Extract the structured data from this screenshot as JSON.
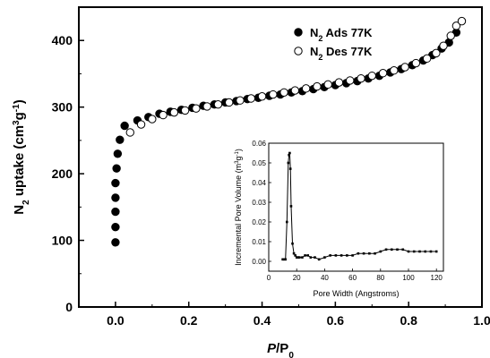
{
  "chart_data": [
    {
      "type": "scatter",
      "xlabel": "P/P0",
      "xlabel_parts": [
        "P",
        "/P",
        "0"
      ],
      "ylabel": "N2 uptake (cm3g-1)",
      "ylabel_parts": [
        "N",
        "2",
        " uptake (cm",
        "3",
        "g",
        "-1",
        ")"
      ],
      "xlim": [
        -0.1,
        1.0
      ],
      "ylim": [
        0,
        450
      ],
      "xticks": [
        0.0,
        0.2,
        0.4,
        0.6,
        0.8,
        1.0
      ],
      "xtick_labels": [
        "0.0",
        "0.2",
        "0.4",
        "0.6",
        "0.8",
        "1.0"
      ],
      "yticks": [
        0,
        100,
        200,
        300,
        400
      ],
      "ytick_labels": [
        "0",
        "100",
        "200",
        "300",
        "400"
      ],
      "grid": false,
      "legend_placement": "top-right",
      "series": [
        {
          "name": "N2 Ads 77K",
          "name_parts": [
            "N",
            "2",
            " Ads 77K"
          ],
          "marker": "filled-circle",
          "color": "#000000",
          "x": [
            0.0,
            0.0,
            0.0,
            0.0,
            0.0,
            0.003,
            0.006,
            0.012,
            0.025,
            0.06,
            0.09,
            0.12,
            0.15,
            0.18,
            0.21,
            0.24,
            0.27,
            0.3,
            0.33,
            0.36,
            0.39,
            0.42,
            0.45,
            0.48,
            0.51,
            0.54,
            0.57,
            0.6,
            0.63,
            0.66,
            0.69,
            0.72,
            0.75,
            0.78,
            0.81,
            0.84,
            0.865,
            0.89,
            0.91,
            0.93
          ],
          "y": [
            97,
            120,
            143,
            164,
            186,
            208,
            230,
            251,
            272,
            280,
            285,
            290,
            293,
            296,
            299,
            302,
            304,
            307,
            309,
            312,
            314,
            317,
            319,
            322,
            324,
            327,
            330,
            333,
            336,
            339,
            343,
            347,
            352,
            357,
            363,
            370,
            378,
            388,
            397,
            412
          ]
        },
        {
          "name": "N2 Des 77K",
          "name_parts": [
            "N",
            "2",
            " Des 77K"
          ],
          "marker": "open-circle",
          "color": "#000000",
          "x": [
            0.04,
            0.07,
            0.1,
            0.13,
            0.16,
            0.19,
            0.22,
            0.25,
            0.28,
            0.31,
            0.34,
            0.37,
            0.4,
            0.43,
            0.46,
            0.49,
            0.52,
            0.55,
            0.58,
            0.61,
            0.64,
            0.67,
            0.7,
            0.73,
            0.76,
            0.79,
            0.82,
            0.85,
            0.875,
            0.895,
            0.915,
            0.93,
            0.945
          ],
          "y": [
            262,
            274,
            282,
            288,
            292,
            295,
            298,
            301,
            304,
            307,
            310,
            313,
            316,
            319,
            322,
            325,
            328,
            331,
            334,
            337,
            340,
            343,
            347,
            351,
            355,
            360,
            366,
            373,
            381,
            392,
            407,
            422,
            429
          ]
        }
      ]
    },
    {
      "type": "line",
      "xlabel": "Pore Width (Angstroms)",
      "ylabel": "Incremental Pore Volume (m3g-1)",
      "ylabel_parts": [
        "Incremental Pore Volume (m",
        "3",
        "g",
        "-1",
        ")"
      ],
      "xlim": [
        0,
        125
      ],
      "ylim": [
        -0.005,
        0.06
      ],
      "xticks": [
        0,
        20,
        40,
        60,
        80,
        100,
        120
      ],
      "xtick_labels": [
        "0",
        "20",
        "40",
        "60",
        "80",
        "100",
        "120"
      ],
      "yticks": [
        0.0,
        0.01,
        0.02,
        0.03,
        0.04,
        0.05,
        0.06
      ],
      "ytick_labels": [
        "0.00",
        "0.01",
        "0.02",
        "0.03",
        "0.04",
        "0.05",
        "0.06"
      ],
      "grid": false,
      "legend_placement": "none",
      "series": [
        {
          "marker": "filled-square",
          "color": "#000000",
          "x": [
            10,
            11,
            12,
            13,
            14,
            14.5,
            15,
            15.5,
            16,
            17,
            18,
            19,
            20,
            21,
            22,
            24,
            26,
            28,
            30,
            33,
            36,
            40,
            44,
            48,
            52,
            56,
            60,
            64,
            68,
            72,
            76,
            80,
            84,
            88,
            92,
            96,
            100,
            104,
            108,
            112,
            116,
            120
          ],
          "y": [
            0.001,
            0.001,
            0.001,
            0.02,
            0.05,
            0.054,
            0.055,
            0.047,
            0.028,
            0.009,
            0.004,
            0.003,
            0.002,
            0.002,
            0.002,
            0.002,
            0.003,
            0.003,
            0.002,
            0.002,
            0.001,
            0.002,
            0.003,
            0.003,
            0.003,
            0.003,
            0.003,
            0.004,
            0.004,
            0.004,
            0.004,
            0.005,
            0.006,
            0.006,
            0.006,
            0.006,
            0.005,
            0.005,
            0.005,
            0.005,
            0.005,
            0.005
          ]
        }
      ]
    }
  ]
}
